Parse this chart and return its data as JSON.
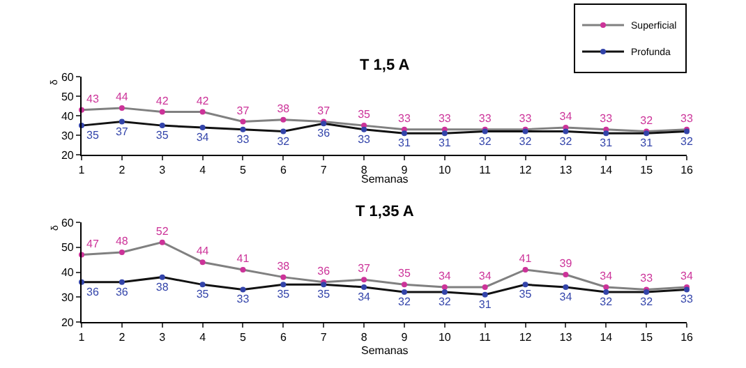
{
  "chart_data": [
    {
      "type": "line",
      "title": "T 1,5 A",
      "xlabel": "Semanas",
      "ylabel": "δ",
      "x": [
        1,
        2,
        3,
        4,
        5,
        6,
        7,
        8,
        9,
        10,
        11,
        12,
        13,
        14,
        15,
        16
      ],
      "series": [
        {
          "name": "Superficial",
          "color": "#cc3399",
          "values": [
            43,
            44,
            42,
            42,
            37,
            38,
            37,
            35,
            33,
            33,
            33,
            33,
            34,
            33,
            32,
            33
          ]
        },
        {
          "name": "Profunda",
          "color": "#3344aa",
          "values": [
            35,
            37,
            35,
            34,
            33,
            32,
            36,
            33,
            31,
            31,
            32,
            32,
            32,
            31,
            31,
            32
          ]
        }
      ],
      "xlim": [
        1,
        16
      ],
      "xticks": [
        1,
        2,
        3,
        4,
        5,
        6,
        7,
        8,
        9,
        10,
        11,
        12,
        13,
        14,
        15,
        16
      ],
      "ylim": [
        20,
        60
      ],
      "yticks": [
        20,
        30,
        40,
        50,
        60
      ],
      "data_labels": true,
      "legend": "top right",
      "marker": "circle"
    },
    {
      "type": "line",
      "title": "T 1,35 A",
      "xlabel": "Semanas",
      "ylabel": "δ",
      "x": [
        1,
        2,
        3,
        4,
        5,
        6,
        7,
        8,
        9,
        10,
        11,
        12,
        13,
        14,
        15,
        16
      ],
      "series": [
        {
          "color": "#cc3399",
          "values": [
            47,
            48,
            52,
            44,
            41,
            38,
            36,
            37,
            35,
            34,
            34,
            41,
            39,
            34,
            33,
            34
          ]
        },
        {
          "color": "#3344aa",
          "values": [
            36,
            36,
            38,
            35,
            33,
            35,
            35,
            34,
            32,
            32,
            31,
            35,
            34,
            32,
            32,
            33
          ]
        }
      ],
      "xlim": [
        1,
        16
      ],
      "xticks": [
        1,
        2,
        3,
        4,
        5,
        6,
        7,
        8,
        9,
        10,
        11,
        12,
        13,
        14,
        15,
        16
      ],
      "ylim": [
        20,
        60
      ],
      "yticks": [
        20,
        30,
        40,
        50,
        60
      ],
      "data_labels": true,
      "legend": false,
      "marker": "circle"
    }
  ]
}
